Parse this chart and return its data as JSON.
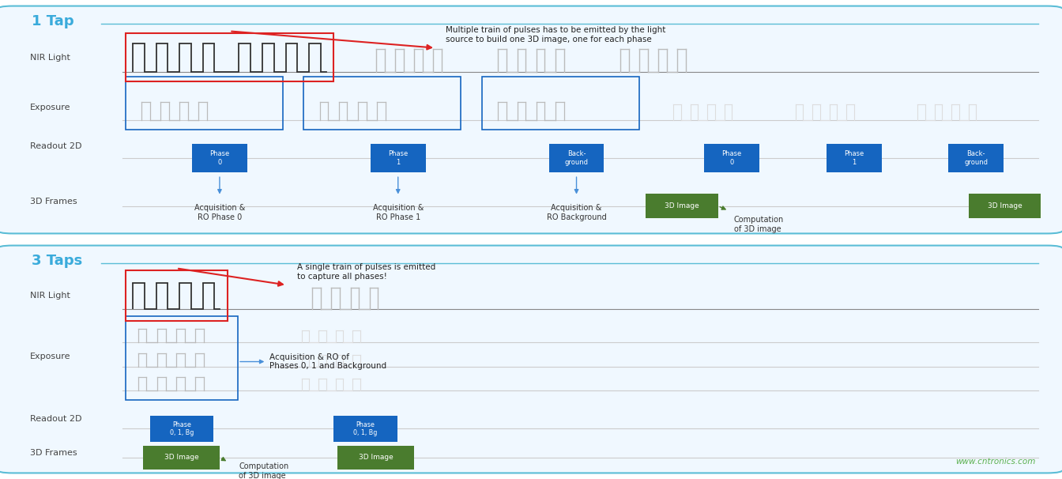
{
  "title1": "1 Tap",
  "title2": "3 Taps",
  "bg_color": "#ffffff",
  "border_color": "#5bbdd6",
  "row_label_color": "#444444",
  "pulse_color_dark": "#333333",
  "pulse_color_light": "#bbbbbb",
  "pulse_color_lighter": "#dddddd",
  "blue_box_color": "#1565c0",
  "green_box_color": "#4a7c2e",
  "red_outline_color": "#dd2222",
  "title_color": "#3aabdb",
  "arrow_color_blue": "#4a90d9",
  "arrow_color_red": "#dd2222",
  "arrow_color_green": "#4a7c2e",
  "watermark": "www.cntronics.com",
  "watermark_color": "#5ab04e",
  "panel_bg": "#f0f8ff"
}
